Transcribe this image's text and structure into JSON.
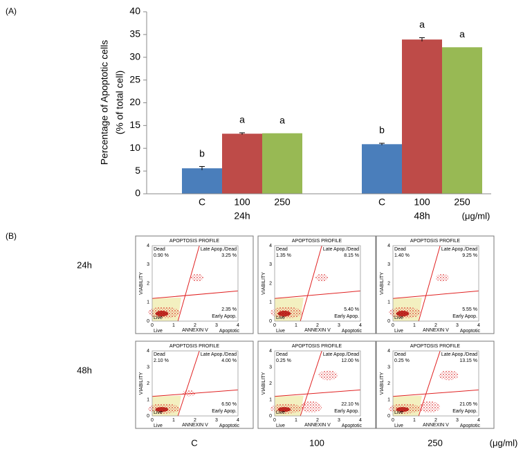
{
  "chart_data": {
    "type": "bar",
    "panel_label": "(A)",
    "y_label_lines": [
      "Percentage  of Apoptotic cells",
      "(% of total cell)"
    ],
    "categories": [
      "24h",
      "48h"
    ],
    "series": [
      {
        "name": "C",
        "color": "#4a7ebb",
        "values": [
          5.6,
          10.9
        ],
        "errors": [
          0.4,
          0.2
        ],
        "letters": [
          "b",
          "b"
        ]
      },
      {
        "name": "100",
        "color": "#be4b48",
        "values": [
          13.2,
          33.9
        ],
        "errors": [
          0.2,
          0.4
        ],
        "letters": [
          "a",
          "a"
        ]
      },
      {
        "name": "250",
        "color": "#98b954",
        "values": [
          13.3,
          32.2
        ],
        "letters": [
          "a",
          "a"
        ]
      }
    ],
    "unit": "(μg/ml)",
    "ylim": [
      0,
      40
    ],
    "yticks": [
      0,
      5,
      10,
      15,
      20,
      25,
      30,
      35,
      40
    ]
  },
  "panel_b": {
    "panel_label": "(B)",
    "rows": [
      "24h",
      "48h"
    ],
    "columns": [
      "C",
      "100",
      "250"
    ],
    "unit": "(μg/ml)",
    "plot_title": "APOPTOSIS PROFILE",
    "x_axis_label": "ANNEXIN V",
    "y_axis_label": "VIABILITY",
    "ticks": [
      0,
      1,
      2,
      3,
      4
    ],
    "corner_labels": {
      "live": "Live",
      "apoptotic": "Apoptotic"
    },
    "quadrant_labels": {
      "dead": "Dead",
      "late": "Late Apop./Dead",
      "early": "Early Apop."
    },
    "plots": [
      [
        {
          "dead": "0.90 %",
          "late": "3.25 %",
          "early": "2.35 %"
        },
        {
          "dead": "1.35 %",
          "late": "8.15 %",
          "early": "5.40 %"
        },
        {
          "dead": "1.40 %",
          "late": "9.25 %",
          "early": "5.55 %"
        }
      ],
      [
        {
          "dead": "2.10 %",
          "late": "4.00 %",
          "early": "6.50 %"
        },
        {
          "dead": "0.25 %",
          "late": "12.00 %",
          "early": "22.10 %"
        },
        {
          "dead": "0.25 %",
          "late": "13.15 %",
          "early": "21.05 %"
        }
      ]
    ]
  }
}
